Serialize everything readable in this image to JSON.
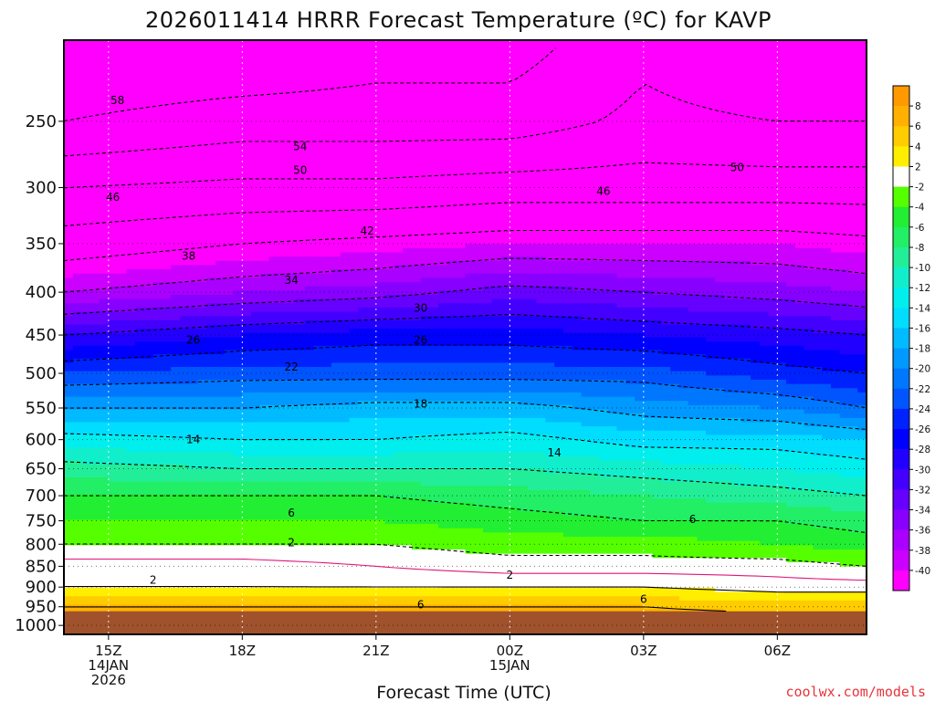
{
  "chart_data": {
    "type": "heatmap",
    "title": "2026011414 HRRR Forecast Temperature (ºC) for KAVP",
    "xlabel": "Forecast Time (UTC)",
    "ylabel": "",
    "x_ticks": [
      {
        "lines": [
          "15Z",
          "14JAN",
          "2026"
        ],
        "hour": 15
      },
      {
        "lines": [
          "18Z"
        ],
        "hour": 18
      },
      {
        "lines": [
          "21Z"
        ],
        "hour": 21
      },
      {
        "lines": [
          "00Z",
          "15JAN"
        ],
        "hour": 24
      },
      {
        "lines": [
          "03Z"
        ],
        "hour": 27
      },
      {
        "lines": [
          "06Z"
        ],
        "hour": 30
      }
    ],
    "x_range_hours": [
      14,
      32
    ],
    "y_ticks": [
      "250",
      "300",
      "350",
      "400",
      "450",
      "500",
      "550",
      "600",
      "650",
      "700",
      "750",
      "800",
      "850",
      "900",
      "950",
      "1000"
    ],
    "y_range_hpa": [
      200,
      1025
    ],
    "y_scale": "log-pressure",
    "grid": true,
    "colorbar": {
      "labels": [
        "8",
        "6",
        "4",
        "2",
        "-2",
        "-4",
        "-6",
        "-8",
        "-10",
        "-12",
        "-14",
        "-16",
        "-18",
        "-20",
        "-22",
        "-24",
        "-26",
        "-28",
        "-30",
        "-32",
        "-34",
        "-36",
        "-38",
        "-40"
      ],
      "bins": [
        {
          "lo": 8,
          "hi": 10,
          "color": "#ff9900"
        },
        {
          "lo": 6,
          "hi": 8,
          "color": "#ffb000"
        },
        {
          "lo": 4,
          "hi": 6,
          "color": "#ffcc00"
        },
        {
          "lo": 2,
          "hi": 4,
          "color": "#ffee00"
        },
        {
          "lo": -2,
          "hi": 2,
          "color": "#ffffff"
        },
        {
          "lo": -4,
          "hi": -2,
          "color": "#55ff00"
        },
        {
          "lo": -6,
          "hi": -4,
          "color": "#22ee33"
        },
        {
          "lo": -8,
          "hi": -6,
          "color": "#22ee66"
        },
        {
          "lo": -10,
          "hi": -8,
          "color": "#22ee99"
        },
        {
          "lo": -12,
          "hi": -10,
          "color": "#11eecc"
        },
        {
          "lo": -14,
          "hi": -12,
          "color": "#00eeee"
        },
        {
          "lo": -16,
          "hi": -14,
          "color": "#00ddff"
        },
        {
          "lo": -18,
          "hi": -16,
          "color": "#00bbff"
        },
        {
          "lo": -20,
          "hi": -18,
          "color": "#0099ff"
        },
        {
          "lo": -22,
          "hi": -20,
          "color": "#0077ff"
        },
        {
          "lo": -24,
          "hi": -22,
          "color": "#0055ff"
        },
        {
          "lo": -26,
          "hi": -24,
          "color": "#0022ff"
        },
        {
          "lo": -28,
          "hi": -26,
          "color": "#0000ff"
        },
        {
          "lo": -30,
          "hi": -28,
          "color": "#2200ff"
        },
        {
          "lo": -32,
          "hi": -30,
          "color": "#4400ff"
        },
        {
          "lo": -34,
          "hi": -32,
          "color": "#6600ff"
        },
        {
          "lo": -36,
          "hi": -34,
          "color": "#8800ff"
        },
        {
          "lo": -38,
          "hi": -36,
          "color": "#aa00ff"
        },
        {
          "lo": -40,
          "hi": -38,
          "color": "#cc00ff"
        },
        {
          "lo": -80,
          "hi": -40,
          "color": "#ff00ff"
        }
      ],
      "ground_color": "#a0522d"
    },
    "temperature_profiles": [
      {
        "hour": 14,
        "points": [
          [
            200,
            -62
          ],
          [
            250,
            -58
          ],
          [
            300,
            -50
          ],
          [
            350,
            -44
          ],
          [
            400,
            -38
          ],
          [
            450,
            -30
          ],
          [
            500,
            -24
          ],
          [
            550,
            -18
          ],
          [
            600,
            -13
          ],
          [
            650,
            -9
          ],
          [
            700,
            -6
          ],
          [
            750,
            -4
          ],
          [
            800,
            -2
          ],
          [
            850,
            1
          ],
          [
            900,
            2
          ],
          [
            950,
            6
          ],
          [
            1000,
            8
          ]
        ]
      },
      {
        "hour": 18,
        "points": [
          [
            200,
            -62
          ],
          [
            250,
            -56
          ],
          [
            300,
            -49
          ],
          [
            350,
            -42
          ],
          [
            400,
            -36
          ],
          [
            450,
            -28
          ],
          [
            500,
            -23
          ],
          [
            550,
            -18
          ],
          [
            600,
            -14
          ],
          [
            650,
            -10
          ],
          [
            700,
            -6
          ],
          [
            750,
            -4
          ],
          [
            800,
            -2
          ],
          [
            850,
            1
          ],
          [
            900,
            2
          ],
          [
            950,
            6
          ],
          [
            1000,
            8
          ]
        ]
      },
      {
        "hour": 21,
        "points": [
          [
            200,
            -60
          ],
          [
            250,
            -56
          ],
          [
            300,
            -49
          ],
          [
            350,
            -41
          ],
          [
            400,
            -35
          ],
          [
            450,
            -27
          ],
          [
            500,
            -23
          ],
          [
            550,
            -17
          ],
          [
            600,
            -14
          ],
          [
            650,
            -10
          ],
          [
            700,
            -6
          ],
          [
            750,
            -4
          ],
          [
            800,
            -2
          ],
          [
            850,
            0
          ],
          [
            900,
            2
          ],
          [
            950,
            6
          ],
          [
            1000,
            8
          ]
        ]
      },
      {
        "hour": 24,
        "points": [
          [
            200,
            -60
          ],
          [
            250,
            -56
          ],
          [
            300,
            -48
          ],
          [
            350,
            -40
          ],
          [
            400,
            -33
          ],
          [
            450,
            -27
          ],
          [
            500,
            -23
          ],
          [
            550,
            -17
          ],
          [
            600,
            -13
          ],
          [
            650,
            -10
          ],
          [
            700,
            -7
          ],
          [
            750,
            -5
          ],
          [
            800,
            -3
          ],
          [
            850,
            -1
          ],
          [
            900,
            2
          ],
          [
            950,
            6
          ],
          [
            1000,
            8
          ]
        ]
      },
      {
        "hour": 27,
        "points": [
          [
            200,
            -55
          ],
          [
            250,
            -53
          ],
          [
            300,
            -48
          ],
          [
            350,
            -40
          ],
          [
            400,
            -34
          ],
          [
            450,
            -28
          ],
          [
            500,
            -23
          ],
          [
            550,
            -19
          ],
          [
            600,
            -15
          ],
          [
            650,
            -11
          ],
          [
            700,
            -8
          ],
          [
            750,
            -6
          ],
          [
            800,
            -3
          ],
          [
            850,
            -1
          ],
          [
            900,
            2
          ],
          [
            950,
            6
          ],
          [
            1000,
            8
          ]
        ]
      },
      {
        "hour": 30,
        "points": [
          [
            200,
            -58
          ],
          [
            250,
            -54
          ],
          [
            300,
            -48
          ],
          [
            350,
            -40
          ],
          [
            400,
            -35
          ],
          [
            450,
            -29
          ],
          [
            500,
            -25
          ],
          [
            550,
            -20
          ],
          [
            600,
            -15
          ],
          [
            650,
            -12
          ],
          [
            700,
            -9
          ],
          [
            750,
            -6
          ],
          [
            800,
            -4
          ],
          [
            850,
            -1
          ],
          [
            900,
            1
          ],
          [
            950,
            5
          ],
          [
            1000,
            8
          ]
        ]
      },
      {
        "hour": 32,
        "points": [
          [
            200,
            -58
          ],
          [
            250,
            -54
          ],
          [
            300,
            -48
          ],
          [
            350,
            -41
          ],
          [
            400,
            -36
          ],
          [
            450,
            -30
          ],
          [
            500,
            -26
          ],
          [
            550,
            -22
          ],
          [
            600,
            -16
          ],
          [
            650,
            -13
          ],
          [
            700,
            -10
          ],
          [
            750,
            -7
          ],
          [
            800,
            -5
          ],
          [
            850,
            -2
          ],
          [
            900,
            1
          ],
          [
            950,
            5
          ],
          [
            1000,
            8
          ]
        ]
      }
    ],
    "contour_labels": [
      {
        "text": "58",
        "hour": 15.2,
        "hpa": 236
      },
      {
        "text": "54",
        "hour": 19.3,
        "hpa": 268
      },
      {
        "text": "50",
        "hour": 19.3,
        "hpa": 286
      },
      {
        "text": "46",
        "hour": 15.1,
        "hpa": 308
      },
      {
        "text": "42",
        "hour": 20.8,
        "hpa": 338
      },
      {
        "text": "38",
        "hour": 16.8,
        "hpa": 362
      },
      {
        "text": "34",
        "hour": 19.1,
        "hpa": 387
      },
      {
        "text": "30",
        "hour": 22.0,
        "hpa": 418
      },
      {
        "text": "26",
        "hour": 16.9,
        "hpa": 456
      },
      {
        "text": "26",
        "hour": 22.0,
        "hpa": 456
      },
      {
        "text": "22",
        "hour": 19.1,
        "hpa": 491
      },
      {
        "text": "18",
        "hour": 22.0,
        "hpa": 544
      },
      {
        "text": "14",
        "hour": 16.9,
        "hpa": 600
      },
      {
        "text": "14",
        "hour": 25.0,
        "hpa": 622
      },
      {
        "text": "46",
        "hour": 26.1,
        "hpa": 303
      },
      {
        "text": "50",
        "hour": 29.1,
        "hpa": 284
      },
      {
        "text": "6",
        "hour": 19.1,
        "hpa": 734
      },
      {
        "text": "6",
        "hour": 28.1,
        "hpa": 747
      },
      {
        "text": "2",
        "hour": 19.1,
        "hpa": 796
      },
      {
        "text": "2",
        "hour": 16.0,
        "hpa": 883
      },
      {
        "text": "2",
        "hour": 24.0,
        "hpa": 871
      },
      {
        "text": "6",
        "hour": 22.0,
        "hpa": 945
      },
      {
        "text": "6",
        "hour": 27.0,
        "hpa": 930
      }
    ]
  },
  "credit": "coolwx.com/models"
}
